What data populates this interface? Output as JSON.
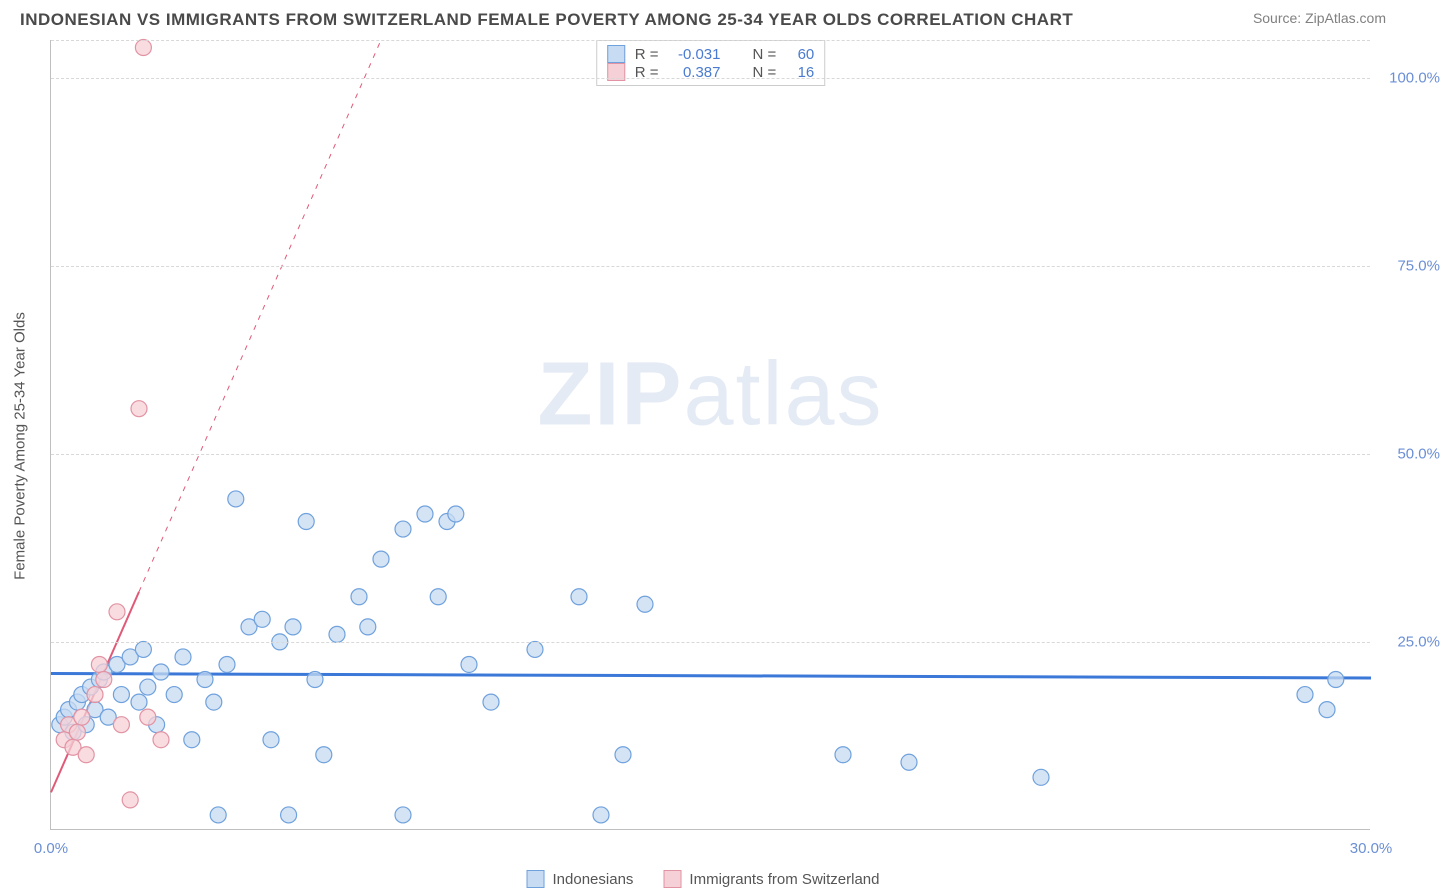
{
  "header": {
    "title": "INDONESIAN VS IMMIGRANTS FROM SWITZERLAND FEMALE POVERTY AMONG 25-34 YEAR OLDS CORRELATION CHART",
    "source": "Source: ZipAtlas.com"
  },
  "chart": {
    "type": "scatter",
    "y_axis_title": "Female Poverty Among 25-34 Year Olds",
    "watermark": {
      "bold": "ZIP",
      "light": "atlas"
    },
    "xlim": [
      0,
      30
    ],
    "ylim": [
      0,
      105
    ],
    "x_ticks": [
      {
        "v": 0,
        "label": "0.0%"
      },
      {
        "v": 30,
        "label": "30.0%"
      }
    ],
    "y_ticks": [
      {
        "v": 25,
        "label": "25.0%"
      },
      {
        "v": 50,
        "label": "50.0%"
      },
      {
        "v": 75,
        "label": "75.0%"
      },
      {
        "v": 100,
        "label": "100.0%"
      }
    ],
    "y_gridlines": [
      25,
      50,
      75,
      100,
      105
    ],
    "axis_color": "#bfbfbf",
    "grid_color": "#d8d8d8",
    "tick_label_color": "#6b8fd4",
    "background_color": "#ffffff",
    "marker_radius": 8,
    "marker_stroke_width": 1.2,
    "series": [
      {
        "name": "Indonesians",
        "fill": "#c7dbf2",
        "stroke": "#6fa1dd",
        "R": "-0.031",
        "N": "60",
        "trend": {
          "x1": 0,
          "y1": 20.8,
          "x2": 30,
          "y2": 20.2,
          "color": "#3b78d8",
          "width": 3,
          "dash": "none"
        },
        "points": [
          [
            0.2,
            14
          ],
          [
            0.3,
            15
          ],
          [
            0.4,
            16
          ],
          [
            0.5,
            13
          ],
          [
            0.6,
            17
          ],
          [
            0.7,
            18
          ],
          [
            0.8,
            14
          ],
          [
            0.9,
            19
          ],
          [
            1.0,
            16
          ],
          [
            1.1,
            20
          ],
          [
            1.2,
            21
          ],
          [
            1.3,
            15
          ],
          [
            1.5,
            22
          ],
          [
            1.6,
            18
          ],
          [
            1.8,
            23
          ],
          [
            2.0,
            17
          ],
          [
            2.1,
            24
          ],
          [
            2.2,
            19
          ],
          [
            2.4,
            14
          ],
          [
            2.5,
            21
          ],
          [
            2.8,
            18
          ],
          [
            3.0,
            23
          ],
          [
            3.2,
            12
          ],
          [
            3.5,
            20
          ],
          [
            3.7,
            17
          ],
          [
            4.0,
            22
          ],
          [
            4.2,
            44
          ],
          [
            4.5,
            27
          ],
          [
            4.8,
            28
          ],
          [
            5.0,
            12
          ],
          [
            5.2,
            25
          ],
          [
            5.5,
            27
          ],
          [
            5.8,
            41
          ],
          [
            6.0,
            20
          ],
          [
            6.2,
            10
          ],
          [
            6.5,
            26
          ],
          [
            7.0,
            31
          ],
          [
            7.2,
            27
          ],
          [
            7.5,
            36
          ],
          [
            8.0,
            2
          ],
          [
            8.0,
            40
          ],
          [
            8.5,
            42
          ],
          [
            8.8,
            31
          ],
          [
            9.0,
            41
          ],
          [
            9.2,
            42
          ],
          [
            9.5,
            22
          ],
          [
            10.0,
            17
          ],
          [
            11.0,
            24
          ],
          [
            12.0,
            31
          ],
          [
            12.5,
            2
          ],
          [
            13.0,
            10
          ],
          [
            13.5,
            30
          ],
          [
            18.0,
            10
          ],
          [
            19.5,
            9
          ],
          [
            22.5,
            7
          ],
          [
            28.5,
            18
          ],
          [
            29.0,
            16
          ],
          [
            29.2,
            20
          ],
          [
            3.8,
            2
          ],
          [
            5.4,
            2
          ]
        ]
      },
      {
        "name": "Immigrants from Switzerland",
        "fill": "#f5d0d6",
        "stroke": "#e293a3",
        "R": "0.387",
        "N": "16",
        "trend": {
          "x1": 0,
          "y1": 5,
          "x2": 7.5,
          "y2": 105,
          "color": "#e05a78",
          "width": 2,
          "dash": "solid_then_dash",
          "solid_until_x": 2.0
        },
        "points": [
          [
            0.3,
            12
          ],
          [
            0.4,
            14
          ],
          [
            0.5,
            11
          ],
          [
            0.6,
            13
          ],
          [
            0.7,
            15
          ],
          [
            0.8,
            10
          ],
          [
            1.0,
            18
          ],
          [
            1.1,
            22
          ],
          [
            1.2,
            20
          ],
          [
            1.5,
            29
          ],
          [
            1.6,
            14
          ],
          [
            2.0,
            56
          ],
          [
            2.1,
            104
          ],
          [
            2.2,
            15
          ],
          [
            2.5,
            12
          ],
          [
            1.8,
            4
          ]
        ]
      }
    ]
  },
  "legend_top": {
    "rows": [
      {
        "swatch_fill": "#c7dbf2",
        "swatch_stroke": "#6fa1dd",
        "r_label": "R =",
        "r_val": "-0.031",
        "n_label": "N =",
        "n_val": "60"
      },
      {
        "swatch_fill": "#f5d0d6",
        "swatch_stroke": "#e293a3",
        "r_label": "R =",
        "r_val": "0.387",
        "n_label": "N =",
        "n_val": "16"
      }
    ]
  },
  "legend_bottom": {
    "items": [
      {
        "swatch_fill": "#c7dbf2",
        "swatch_stroke": "#6fa1dd",
        "label": "Indonesians"
      },
      {
        "swatch_fill": "#f5d0d6",
        "swatch_stroke": "#e293a3",
        "label": "Immigrants from Switzerland"
      }
    ]
  }
}
